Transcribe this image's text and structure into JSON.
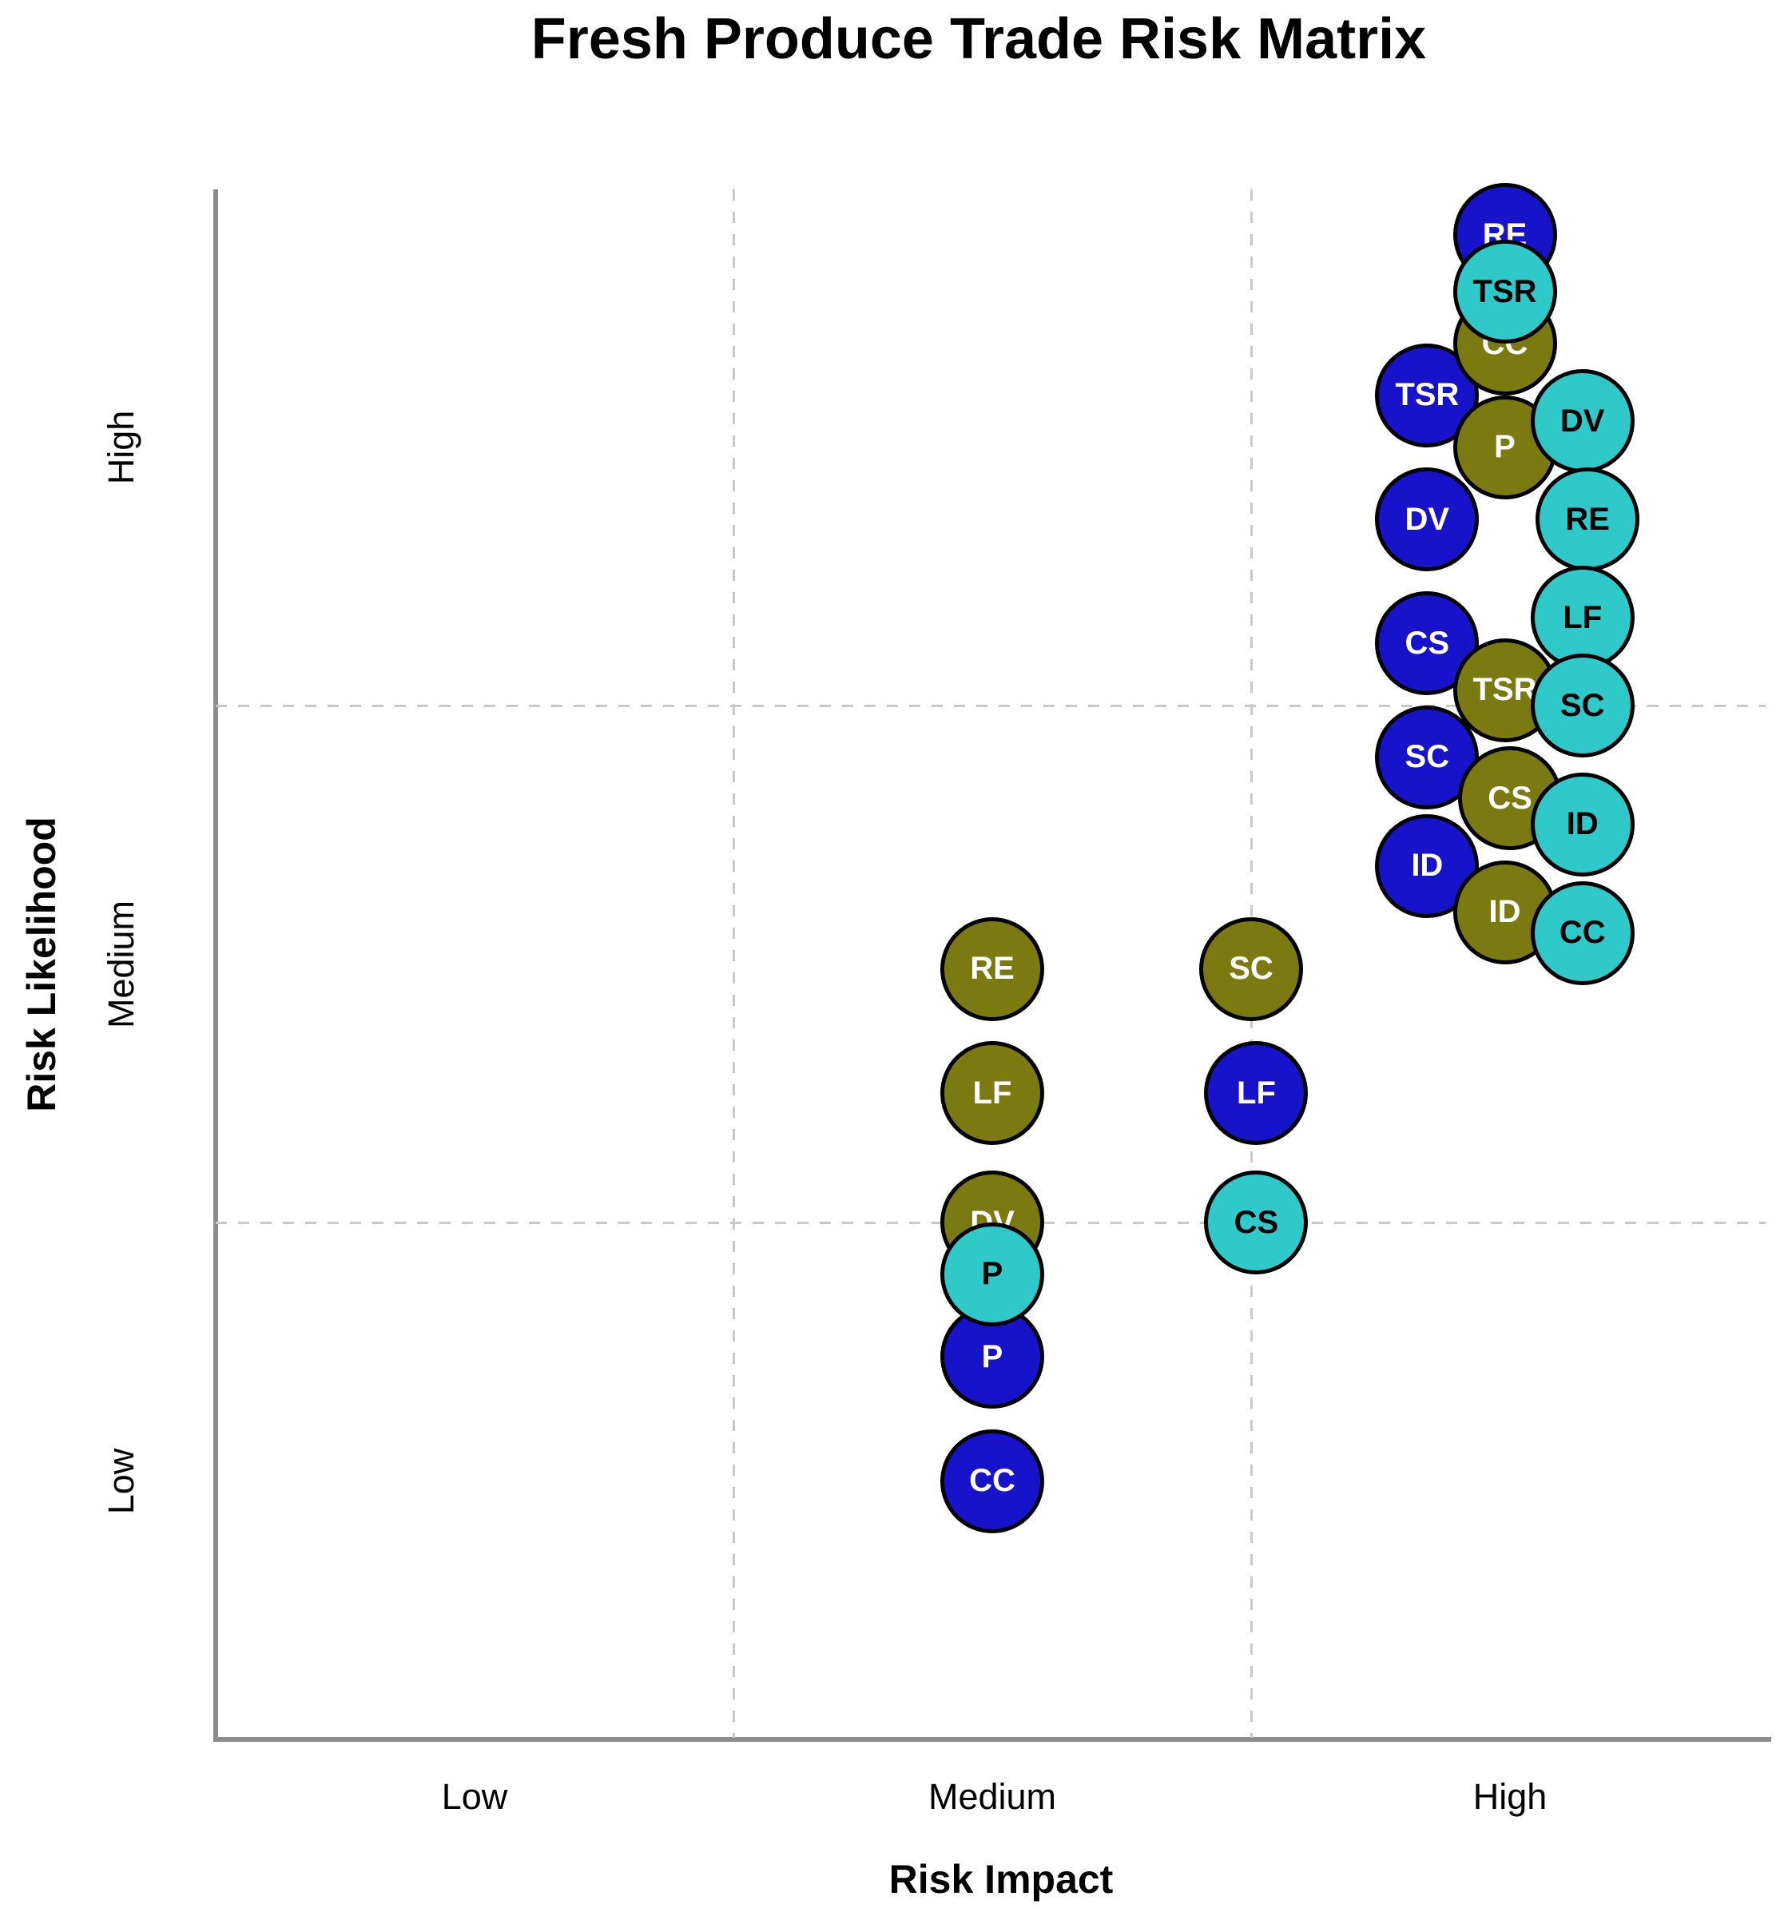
{
  "title": "Fresh Produce Trade Risk Matrix",
  "x_axis": {
    "label": "Risk Impact",
    "ticks": [
      {
        "value": 1,
        "label": "Low"
      },
      {
        "value": 2,
        "label": "Medium"
      },
      {
        "value": 3,
        "label": "High"
      }
    ]
  },
  "y_axis": {
    "label": "Risk Likelihood",
    "ticks": [
      {
        "value": 1,
        "label": "Low"
      },
      {
        "value": 2,
        "label": "Medium"
      },
      {
        "value": 3,
        "label": "High"
      }
    ]
  },
  "style": {
    "navy": "#1713cb",
    "olive": "#7b7a10",
    "turquoise": "#2fc9c9",
    "axis_line": "#8c8c8c",
    "grid_line": "#c9c9c9",
    "bubble_border": "#000000"
  },
  "chart_data": {
    "type": "scatter",
    "title": "Fresh Produce Trade Risk Matrix",
    "xlabel": "Risk Impact",
    "ylabel": "Risk Likelihood",
    "xlim": [
      0.5,
      3.5
    ],
    "ylim": [
      0.5,
      3.5
    ],
    "x_tick_values": [
      1,
      2,
      3
    ],
    "x_tick_labels": [
      "Low",
      "Medium",
      "High"
    ],
    "y_tick_values": [
      1,
      2,
      3
    ],
    "y_tick_labels": [
      "Low",
      "Medium",
      "High"
    ],
    "gridlines": {
      "x": [
        1.5,
        2.5
      ],
      "y": [
        1.5,
        2.5
      ],
      "style": "dashed"
    },
    "legend": "none",
    "series": [
      {
        "name": "navy-blue",
        "color": "#1713cb",
        "label_color": "#ffffff",
        "points": [
          {
            "label": "RE",
            "x": 2.99,
            "y": 3.41
          },
          {
            "label": "TSR",
            "x": 2.84,
            "y": 3.1
          },
          {
            "label": "DV",
            "x": 2.84,
            "y": 2.86
          },
          {
            "label": "CS",
            "x": 2.84,
            "y": 2.62
          },
          {
            "label": "SC",
            "x": 2.84,
            "y": 2.4
          },
          {
            "label": "ID",
            "x": 2.84,
            "y": 2.19
          },
          {
            "label": "LF",
            "x": 2.51,
            "y": 1.75
          },
          {
            "label": "P",
            "x": 2.0,
            "y": 1.24
          },
          {
            "label": "CC",
            "x": 2.0,
            "y": 1.0
          }
        ]
      },
      {
        "name": "olive",
        "color": "#7b7a10",
        "label_color": "#ffffff",
        "points": [
          {
            "label": "CC",
            "x": 2.99,
            "y": 3.2
          },
          {
            "label": "P",
            "x": 2.99,
            "y": 3.0
          },
          {
            "label": "TSR",
            "x": 2.99,
            "y": 2.53
          },
          {
            "label": "CS",
            "x": 3.0,
            "y": 2.32
          },
          {
            "label": "ID",
            "x": 2.99,
            "y": 2.1
          },
          {
            "label": "RE",
            "x": 2.0,
            "y": 1.99
          },
          {
            "label": "SC",
            "x": 2.5,
            "y": 1.99
          },
          {
            "label": "LF",
            "x": 2.0,
            "y": 1.75
          },
          {
            "label": "DV",
            "x": 2.0,
            "y": 1.5
          }
        ]
      },
      {
        "name": "turquoise",
        "color": "#2fc9c9",
        "label_color": "#000000",
        "points": [
          {
            "label": "TSR",
            "x": 2.99,
            "y": 3.3
          },
          {
            "label": "DV",
            "x": 3.14,
            "y": 3.05
          },
          {
            "label": "RE",
            "x": 3.15,
            "y": 2.86
          },
          {
            "label": "LF",
            "x": 3.14,
            "y": 2.67
          },
          {
            "label": "SC",
            "x": 3.14,
            "y": 2.5
          },
          {
            "label": "ID",
            "x": 3.14,
            "y": 2.27
          },
          {
            "label": "CC",
            "x": 3.14,
            "y": 2.06
          },
          {
            "label": "CS",
            "x": 2.51,
            "y": 1.5
          },
          {
            "label": "P",
            "x": 2.0,
            "y": 1.4
          }
        ]
      }
    ]
  }
}
